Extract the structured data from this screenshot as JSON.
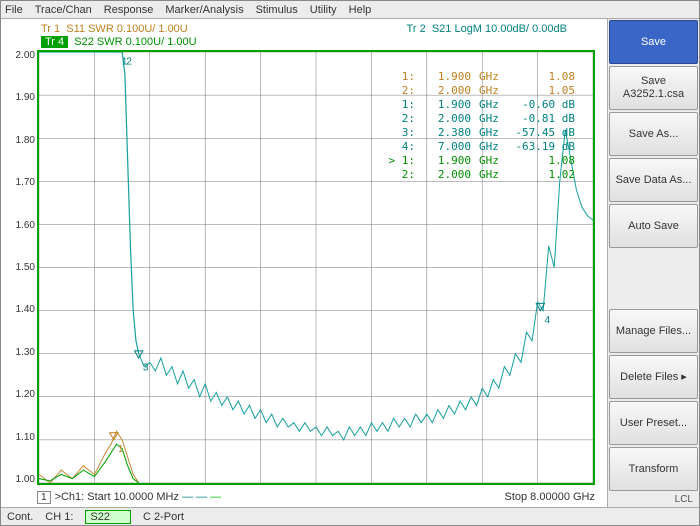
{
  "menu": {
    "items": [
      "File",
      "Trace/Chan",
      "Response",
      "Marker/Analysis",
      "Stimulus",
      "Utility",
      "Help"
    ]
  },
  "traces": {
    "tr1": {
      "label": "Tr 1",
      "text": "S11 SWR 0.100U/ 1.00U",
      "color": "#c08020"
    },
    "tr4": {
      "label": "Tr 4",
      "text": "S22 SWR 0.100U/ 1.00U",
      "color": "#009000"
    },
    "tr2": {
      "label": "Tr 2",
      "text": "S21 LogM 10.00dB/ 0.00dB",
      "color": "#008080"
    }
  },
  "chart": {
    "type": "line",
    "grid_color": "#777777",
    "background_color": "#ffffff",
    "border_color": "#00a000",
    "ylim": [
      1.0,
      2.0
    ],
    "ytick_step": 0.1,
    "yticks": [
      "2.00",
      "1.90",
      "1.80",
      "1.70",
      "1.60",
      "1.50",
      "1.40",
      "1.30",
      "1.20",
      "1.10",
      "1.00"
    ],
    "xlim_label_left": ">Ch1: Start  10.0000 MHz",
    "xlim_label_right": "Stop  8.00000 GHz",
    "ch_badge": "1",
    "series": {
      "tr1_swr": {
        "color": "#c68a3a",
        "width": 1,
        "points": [
          [
            0,
            1.02
          ],
          [
            2,
            1.0
          ],
          [
            4,
            1.03
          ],
          [
            6,
            1.01
          ],
          [
            8,
            1.04
          ],
          [
            10,
            1.02
          ],
          [
            12,
            1.07
          ],
          [
            13,
            1.09
          ],
          [
            14,
            1.12
          ],
          [
            15,
            1.1
          ],
          [
            16,
            1.06
          ],
          [
            17,
            1.02
          ],
          [
            18,
            1.0
          ]
        ]
      },
      "tr4_swr": {
        "color": "#00a000",
        "width": 1,
        "points": [
          [
            0,
            1.01
          ],
          [
            2,
            1.005
          ],
          [
            4,
            1.02
          ],
          [
            6,
            1.01
          ],
          [
            8,
            1.03
          ],
          [
            10,
            1.015
          ],
          [
            12,
            1.05
          ],
          [
            13,
            1.07
          ],
          [
            14,
            1.09
          ],
          [
            15,
            1.08
          ],
          [
            16,
            1.04
          ],
          [
            17,
            1.01
          ],
          [
            18,
            1.0
          ]
        ]
      },
      "tr2_logm": {
        "color": "#1aa0a0",
        "width": 1,
        "points_flat": [
          [
            0,
            2.0
          ],
          [
            14,
            2.0
          ]
        ],
        "points_fall": [
          [
            14,
            2.0
          ],
          [
            15,
            2.0
          ],
          [
            15.5,
            1.95
          ],
          [
            16,
            1.75
          ],
          [
            16.5,
            1.55
          ],
          [
            17,
            1.4
          ],
          [
            17.5,
            1.33
          ],
          [
            18,
            1.3
          ]
        ],
        "points_noisy": [
          [
            18,
            1.3
          ],
          [
            19,
            1.27
          ],
          [
            20,
            1.28
          ],
          [
            21,
            1.26
          ],
          [
            22,
            1.29
          ],
          [
            23,
            1.25
          ],
          [
            24,
            1.27
          ],
          [
            25,
            1.23
          ],
          [
            26,
            1.26
          ],
          [
            27,
            1.22
          ],
          [
            28,
            1.24
          ],
          [
            29,
            1.2
          ],
          [
            30,
            1.23
          ],
          [
            31,
            1.19
          ],
          [
            32,
            1.21
          ],
          [
            33,
            1.18
          ],
          [
            34,
            1.2
          ],
          [
            35,
            1.17
          ],
          [
            36,
            1.19
          ],
          [
            37,
            1.16
          ],
          [
            38,
            1.18
          ],
          [
            39,
            1.15
          ],
          [
            40,
            1.17
          ],
          [
            41,
            1.14
          ],
          [
            42,
            1.16
          ],
          [
            43,
            1.13
          ],
          [
            44,
            1.15
          ],
          [
            45,
            1.13
          ],
          [
            46,
            1.14
          ],
          [
            47,
            1.12
          ],
          [
            48,
            1.14
          ],
          [
            49,
            1.12
          ],
          [
            50,
            1.13
          ],
          [
            51,
            1.11
          ],
          [
            52,
            1.13
          ],
          [
            53,
            1.11
          ],
          [
            54,
            1.12
          ],
          [
            55,
            1.1
          ],
          [
            56,
            1.13
          ],
          [
            57,
            1.11
          ],
          [
            58,
            1.13
          ],
          [
            59,
            1.11
          ],
          [
            60,
            1.14
          ],
          [
            61,
            1.12
          ],
          [
            62,
            1.14
          ],
          [
            63,
            1.12
          ],
          [
            64,
            1.15
          ],
          [
            65,
            1.13
          ],
          [
            66,
            1.15
          ],
          [
            67,
            1.13
          ],
          [
            68,
            1.16
          ],
          [
            69,
            1.14
          ],
          [
            70,
            1.16
          ],
          [
            71,
            1.14
          ],
          [
            72,
            1.17
          ],
          [
            73,
            1.15
          ],
          [
            74,
            1.18
          ],
          [
            75,
            1.16
          ],
          [
            76,
            1.19
          ],
          [
            77,
            1.17
          ],
          [
            78,
            1.2
          ],
          [
            79,
            1.18
          ],
          [
            80,
            1.22
          ],
          [
            81,
            1.2
          ],
          [
            82,
            1.24
          ],
          [
            83,
            1.22
          ],
          [
            84,
            1.27
          ],
          [
            85,
            1.25
          ],
          [
            86,
            1.3
          ],
          [
            87,
            1.28
          ],
          [
            88,
            1.35
          ],
          [
            89,
            1.33
          ],
          [
            90,
            1.42
          ],
          [
            91,
            1.4
          ],
          [
            92,
            1.55
          ],
          [
            93,
            1.5
          ],
          [
            94,
            1.7
          ],
          [
            95,
            1.82
          ],
          [
            96,
            1.75
          ],
          [
            97,
            1.68
          ],
          [
            98,
            1.64
          ],
          [
            99,
            1.62
          ],
          [
            100,
            1.61
          ]
        ]
      }
    },
    "markers_on_plot": [
      {
        "label": "1",
        "x": 14.2,
        "y": 2.0,
        "color": "#008080"
      },
      {
        "label": "2",
        "x": 15.0,
        "y": 2.0,
        "color": "#008080"
      },
      {
        "label": "1",
        "x": 13.5,
        "y": 1.1,
        "color": "#c08020"
      },
      {
        "label": "3",
        "x": 18.0,
        "y": 1.29,
        "color": "#008080"
      },
      {
        "label": "4",
        "x": 90.5,
        "y": 1.4,
        "color": "#008080"
      }
    ]
  },
  "markers": [
    {
      "id": "1:",
      "freq": "1.900",
      "unit": "GHz",
      "val": "1.08",
      "color": "#c08020"
    },
    {
      "id": "2:",
      "freq": "2.000",
      "unit": "GHz",
      "val": "1.05",
      "color": "#c08020"
    },
    {
      "id": "1:",
      "freq": "1.900",
      "unit": "GHz",
      "val": "-0.60 dB",
      "color": "#008080"
    },
    {
      "id": "2:",
      "freq": "2.000",
      "unit": "GHz",
      "val": "-0.81 dB",
      "color": "#008080"
    },
    {
      "id": "3:",
      "freq": "2.380",
      "unit": "GHz",
      "val": "-57.45 dB",
      "color": "#008080"
    },
    {
      "id": "4:",
      "freq": "7.000",
      "unit": "GHz",
      "val": "-63.19 dB",
      "color": "#008080"
    },
    {
      "id": "> 1:",
      "freq": "1.900",
      "unit": "GHz",
      "val": "1.08",
      "color": "#009000"
    },
    {
      "id": "2:",
      "freq": "2.000",
      "unit": "GHz",
      "val": "1.02",
      "color": "#009000"
    }
  ],
  "sidebar": {
    "buttons": [
      {
        "label": "Save",
        "primary": true
      },
      {
        "label": "Save\nA3252.1.csa"
      },
      {
        "label": "Save As..."
      },
      {
        "label": "Save Data As..."
      },
      {
        "label": "Auto Save"
      },
      {
        "label": "Manage Files..."
      },
      {
        "label": "Delete Files  ▸"
      },
      {
        "label": "User Preset..."
      },
      {
        "label": "Transform"
      }
    ],
    "lcl": "LCL"
  },
  "status": {
    "cont": "Cont.",
    "ch": "CH 1:",
    "s22": "S22",
    "port": "C  2-Port"
  }
}
